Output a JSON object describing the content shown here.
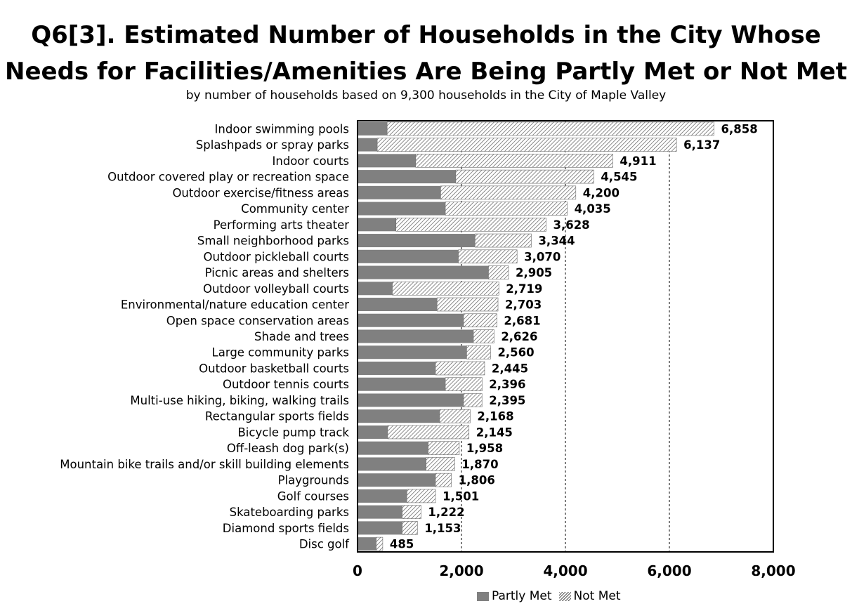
{
  "colors": {
    "partly": "#808080",
    "not_met_hatch": "#5a5a5a",
    "frame": "#000000",
    "grid": "#000000"
  },
  "chart_data": {
    "type": "bar",
    "orientation": "horizontal",
    "stacked": true,
    "title_line1": "Q6[3]. Estimated Number of Households in the City Whose",
    "title_line2": "Needs for Facilities/Amenities Are Being Partly Met or Not Met",
    "subtitle": "by number of households based on 9,300 households in the City of Maple Valley",
    "xlim": [
      0,
      8000
    ],
    "xticks": [
      0,
      2000,
      4000,
      6000,
      8000
    ],
    "xtick_labels": [
      "0",
      "2,000",
      "4,000",
      "6,000",
      "8,000"
    ],
    "grid": "vertical dashed at 2,000 / 4,000 / 6,000",
    "legend_position": "bottom",
    "categories": [
      "Indoor swimming pools",
      "Splashpads or spray parks",
      "Indoor courts",
      "Outdoor covered play or recreation space",
      "Outdoor exercise/fitness areas",
      "Community center",
      "Performing arts theater",
      "Small neighborhood parks",
      "Outdoor pickleball courts",
      "Picnic areas and shelters",
      "Outdoor volleyball courts",
      "Environmental/nature education center",
      "Open space conservation areas",
      "Shade and trees",
      "Large community parks",
      "Outdoor basketball courts",
      "Outdoor tennis courts",
      "Multi-use hiking, biking, walking trails",
      "Rectangular sports fields",
      "Bicycle pump track",
      "Off-leash dog park(s)",
      "Mountain bike trails and/or skill building elements",
      "Playgrounds",
      "Golf courses",
      "Skateboarding parks",
      "Diamond sports fields",
      "Disc golf"
    ],
    "totals": [
      6858,
      6137,
      4911,
      4545,
      4200,
      4035,
      3628,
      3344,
      3070,
      2905,
      2719,
      2703,
      2681,
      2626,
      2560,
      2445,
      2396,
      2395,
      2168,
      2145,
      1958,
      1870,
      1806,
      1501,
      1222,
      1153,
      485
    ],
    "total_labels": [
      "6,858",
      "6,137",
      "4,911",
      "4,545",
      "4,200",
      "4,035",
      "3,628",
      "3,344",
      "3,070",
      "2,905",
      "2,719",
      "2,703",
      "2,681",
      "2,626",
      "2,560",
      "2,445",
      "2,396",
      "2,395",
      "2,168",
      "2,145",
      "1,958",
      "1,870",
      "1,806",
      "1,501",
      "1,222",
      "1,153",
      "485"
    ],
    "series": [
      {
        "name": "Partly Met",
        "values": [
          570,
          380,
          1120,
          1890,
          1600,
          1690,
          740,
          2260,
          1940,
          2520,
          670,
          1530,
          2040,
          2230,
          2100,
          1500,
          1690,
          2040,
          1580,
          580,
          1360,
          1320,
          1500,
          950,
          860,
          860,
          360
        ]
      },
      {
        "name": "Not Met",
        "values": [
          6288,
          5757,
          3791,
          2655,
          2600,
          2345,
          2888,
          1084,
          1130,
          385,
          2049,
          1173,
          641,
          396,
          460,
          945,
          706,
          355,
          588,
          1565,
          598,
          550,
          306,
          551,
          362,
          293,
          125
        ]
      }
    ]
  }
}
